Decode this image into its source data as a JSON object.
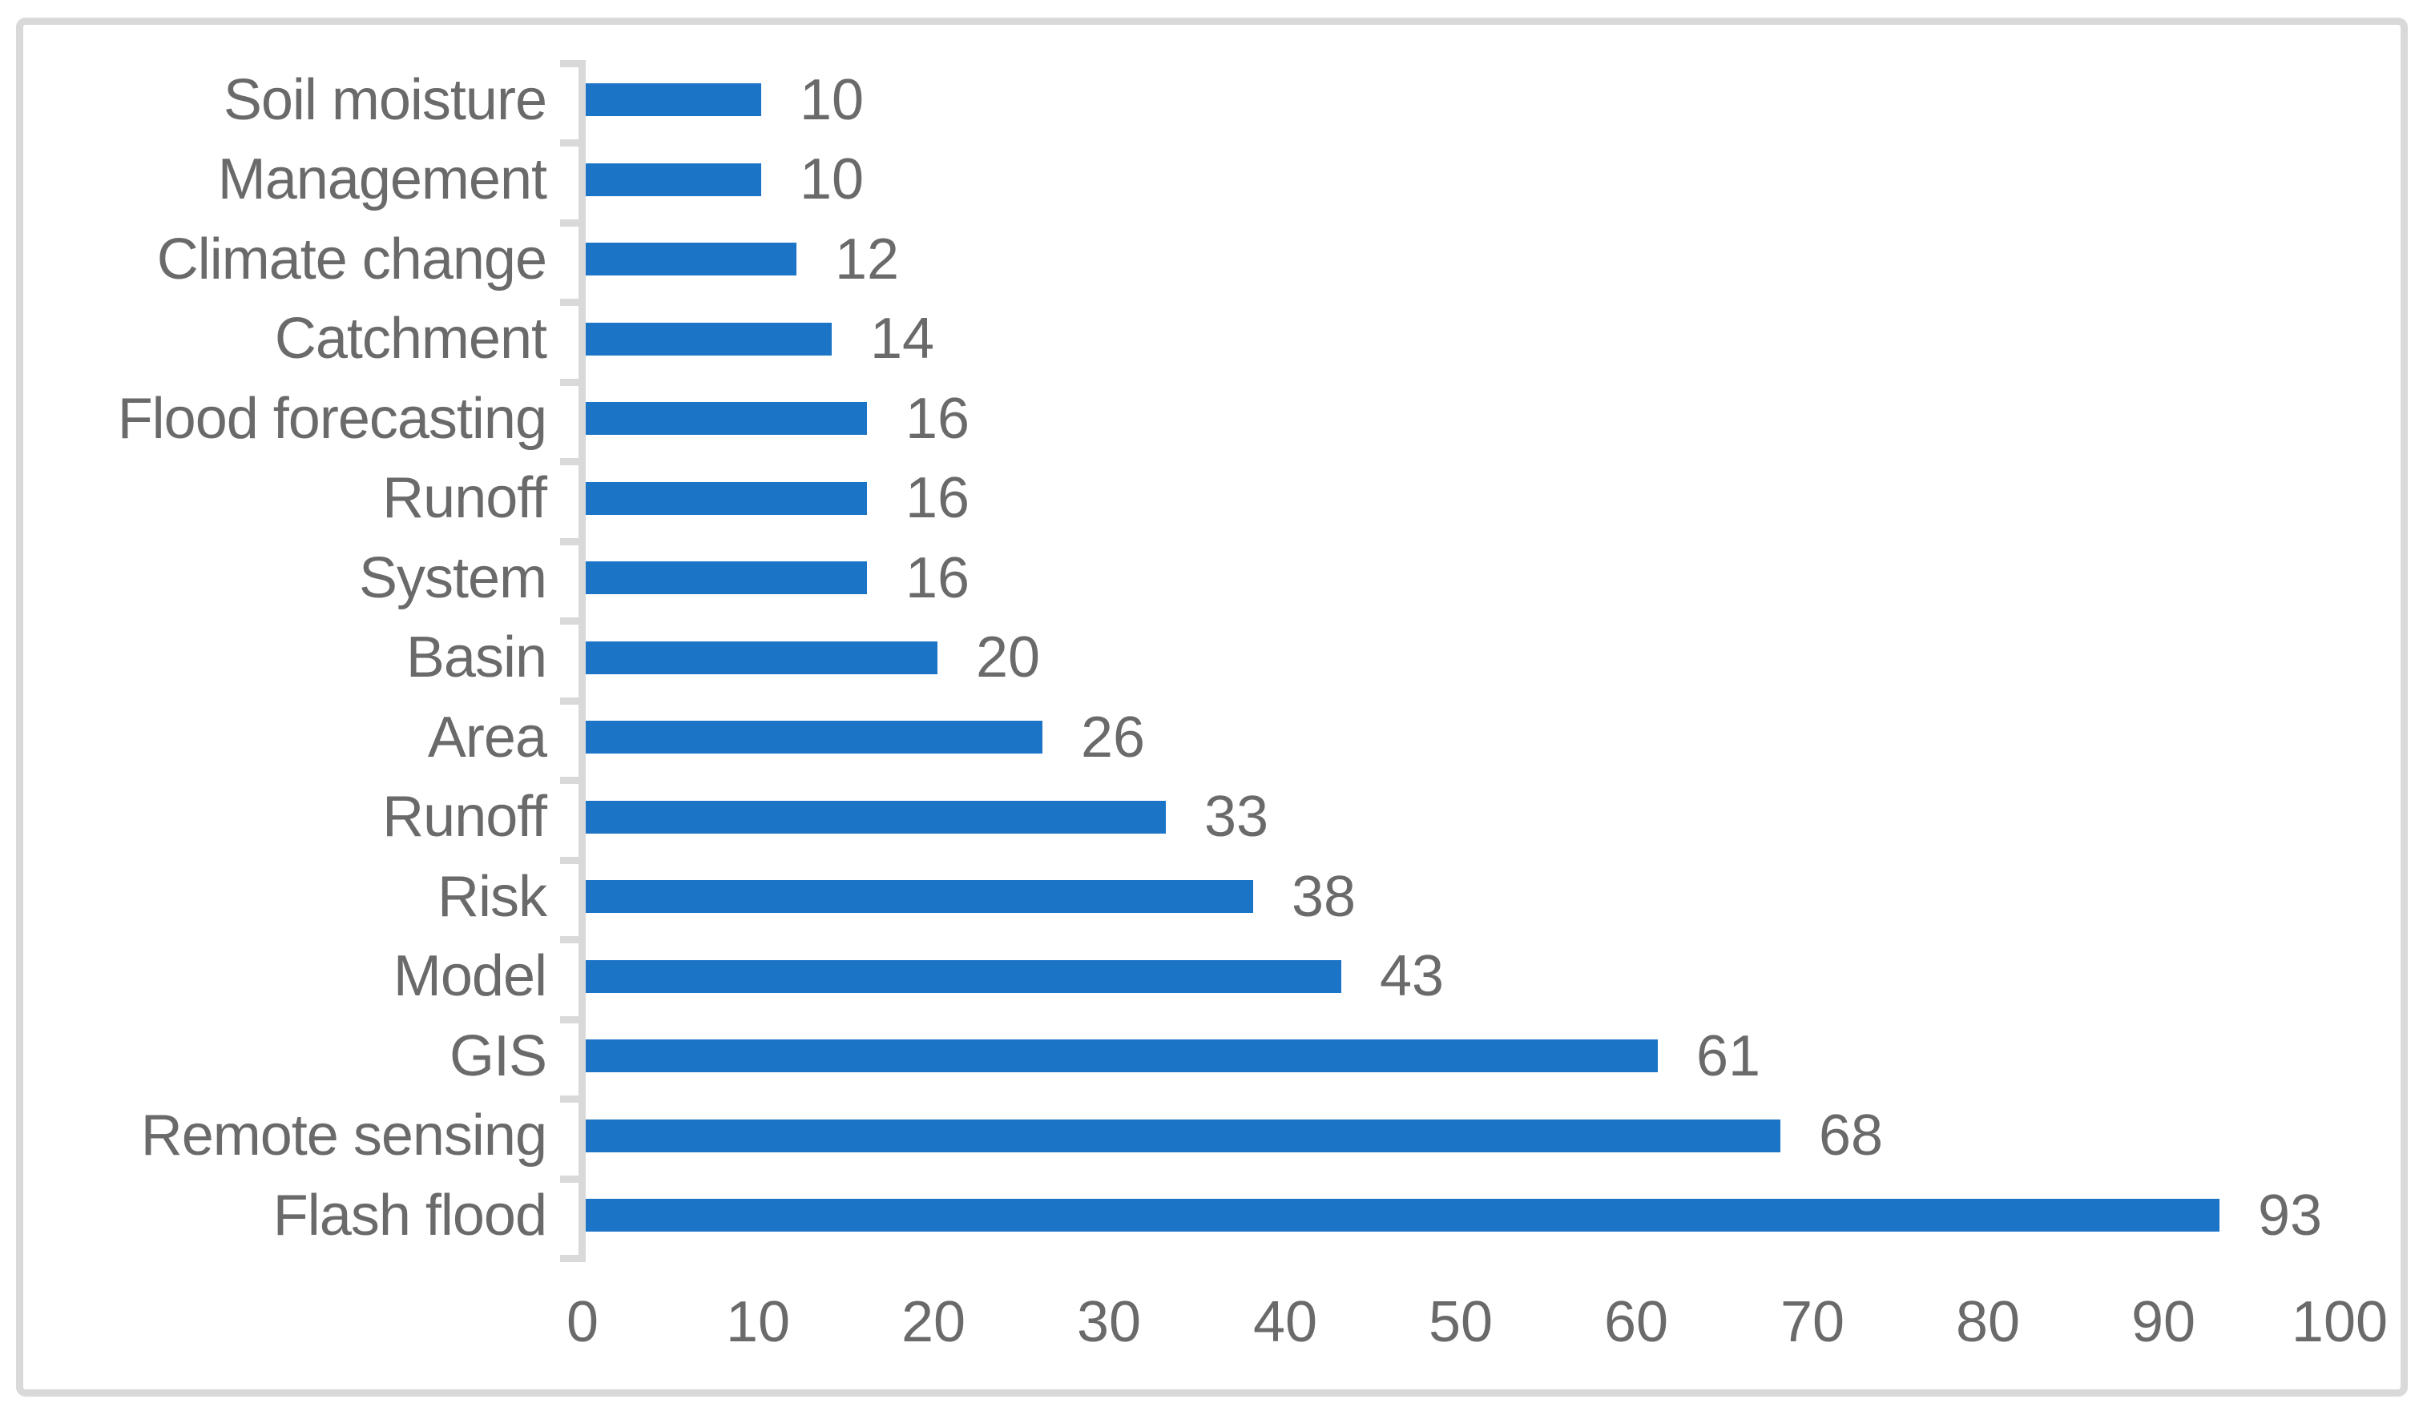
{
  "chart_data": {
    "type": "bar",
    "orientation": "horizontal",
    "title": "",
    "xlabel": "",
    "ylabel": "",
    "categories": [
      "Soil moisture",
      "Management",
      "Climate change",
      "Catchment",
      "Flood forecasting",
      "Runoff",
      "System",
      "Basin",
      "Area",
      "Runoff",
      "Risk",
      "Model",
      "GIS",
      "Remote sensing",
      "Flash flood"
    ],
    "values": [
      10,
      10,
      12,
      14,
      16,
      16,
      16,
      20,
      26,
      33,
      38,
      43,
      61,
      68,
      93
    ],
    "data_labels": [
      "10",
      "10",
      "12",
      "14",
      "16",
      "16",
      "16",
      "20",
      "26",
      "33",
      "38",
      "43",
      "61",
      "68",
      "93"
    ],
    "xlim": [
      0,
      100
    ],
    "xticks": [
      0,
      10,
      20,
      30,
      40,
      50,
      60,
      70,
      80,
      90,
      100
    ],
    "grid": false,
    "legend": null,
    "bar_color": "#1C74C7",
    "axis_color": "#D9D9D9",
    "frame_color": "#D9D9D9",
    "text_color": "#6A6A6A",
    "background_color": "#FFFFFF"
  }
}
